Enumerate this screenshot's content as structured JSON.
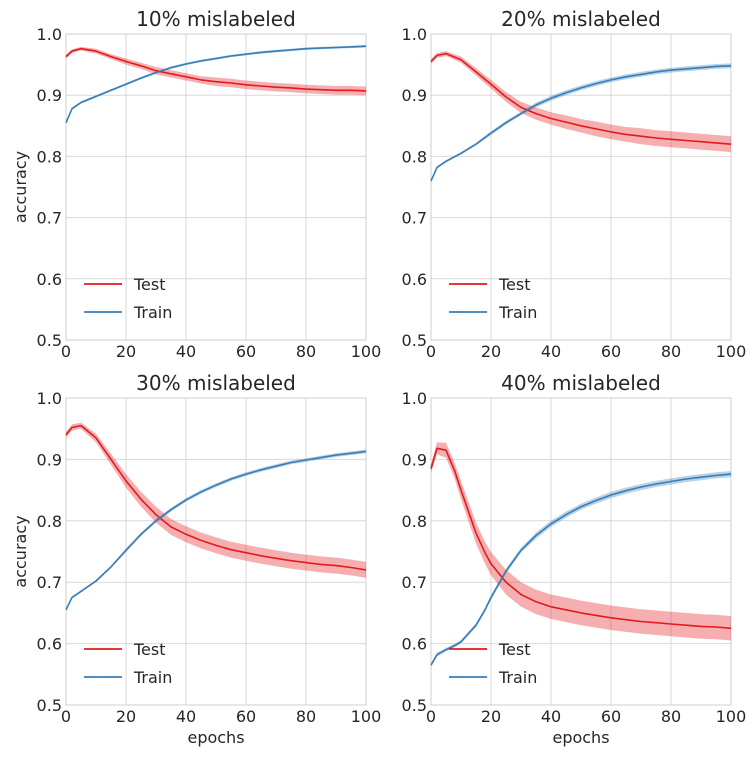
{
  "chart_data": [
    {
      "type": "line",
      "title": "10% mislabeled",
      "xlabel": "",
      "ylabel": "accuracy",
      "xlim": [
        0,
        100
      ],
      "ylim": [
        0.5,
        1.0
      ],
      "xticks": [
        "0",
        "20",
        "40",
        "60",
        "80",
        "100"
      ],
      "yticks": [
        "0.5",
        "0.6",
        "0.7",
        "0.8",
        "0.9",
        "1.0"
      ],
      "grid": true,
      "legend_position": "lower-left",
      "x": [
        0,
        2,
        5,
        10,
        15,
        20,
        25,
        30,
        35,
        40,
        45,
        50,
        55,
        60,
        65,
        70,
        75,
        80,
        85,
        90,
        95,
        100
      ],
      "series": [
        {
          "name": "Test",
          "color": "#e41a1c",
          "values": [
            0.963,
            0.972,
            0.976,
            0.972,
            0.963,
            0.955,
            0.948,
            0.94,
            0.935,
            0.93,
            0.925,
            0.922,
            0.92,
            0.917,
            0.915,
            0.913,
            0.912,
            0.91,
            0.909,
            0.908,
            0.908,
            0.907
          ],
          "band": [
            0.003,
            0.003,
            0.003,
            0.004,
            0.004,
            0.005,
            0.005,
            0.006,
            0.006,
            0.006,
            0.006,
            0.007,
            0.007,
            0.007,
            0.007,
            0.007,
            0.007,
            0.007,
            0.007,
            0.007,
            0.007,
            0.007
          ]
        },
        {
          "name": "Train",
          "color": "#377eb8",
          "values": [
            0.855,
            0.878,
            0.888,
            0.898,
            0.908,
            0.918,
            0.928,
            0.937,
            0.945,
            0.951,
            0.956,
            0.96,
            0.964,
            0.967,
            0.97,
            0.972,
            0.974,
            0.976,
            0.977,
            0.978,
            0.979,
            0.98
          ],
          "band": [
            0.002,
            0.002,
            0.002,
            0.002,
            0.002,
            0.002,
            0.002,
            0.002,
            0.002,
            0.002,
            0.002,
            0.002,
            0.002,
            0.002,
            0.002,
            0.002,
            0.002,
            0.002,
            0.002,
            0.002,
            0.002,
            0.002
          ]
        }
      ]
    },
    {
      "type": "line",
      "title": "20% mislabeled",
      "xlabel": "",
      "ylabel": "",
      "xlim": [
        0,
        100
      ],
      "ylim": [
        0.5,
        1.0
      ],
      "xticks": [
        "0",
        "20",
        "40",
        "60",
        "80",
        "100"
      ],
      "yticks": [
        "0.5",
        "0.6",
        "0.7",
        "0.8",
        "0.9",
        "1.0"
      ],
      "grid": true,
      "legend_position": "lower-left",
      "x": [
        0,
        2,
        5,
        10,
        15,
        20,
        25,
        30,
        35,
        40,
        45,
        50,
        55,
        60,
        65,
        70,
        75,
        80,
        85,
        90,
        95,
        100
      ],
      "series": [
        {
          "name": "Test",
          "color": "#e41a1c",
          "values": [
            0.955,
            0.965,
            0.968,
            0.958,
            0.938,
            0.918,
            0.897,
            0.88,
            0.87,
            0.862,
            0.856,
            0.85,
            0.845,
            0.84,
            0.836,
            0.833,
            0.83,
            0.828,
            0.826,
            0.824,
            0.822,
            0.82
          ],
          "band": [
            0.004,
            0.004,
            0.004,
            0.005,
            0.006,
            0.007,
            0.008,
            0.009,
            0.01,
            0.01,
            0.011,
            0.011,
            0.012,
            0.012,
            0.012,
            0.013,
            0.013,
            0.013,
            0.013,
            0.013,
            0.013,
            0.013
          ]
        },
        {
          "name": "Train",
          "color": "#377eb8",
          "values": [
            0.76,
            0.782,
            0.792,
            0.805,
            0.82,
            0.838,
            0.855,
            0.87,
            0.884,
            0.895,
            0.904,
            0.912,
            0.919,
            0.925,
            0.93,
            0.934,
            0.938,
            0.941,
            0.943,
            0.945,
            0.947,
            0.948
          ],
          "band": [
            0.002,
            0.002,
            0.002,
            0.002,
            0.002,
            0.003,
            0.003,
            0.003,
            0.004,
            0.004,
            0.004,
            0.004,
            0.004,
            0.004,
            0.004,
            0.004,
            0.004,
            0.004,
            0.004,
            0.004,
            0.004,
            0.004
          ]
        }
      ]
    },
    {
      "type": "line",
      "title": "30% mislabeled",
      "xlabel": "epochs",
      "ylabel": "accuracy",
      "xlim": [
        0,
        100
      ],
      "ylim": [
        0.5,
        1.0
      ],
      "xticks": [
        "0",
        "20",
        "40",
        "60",
        "80",
        "100"
      ],
      "yticks": [
        "0.5",
        "0.6",
        "0.7",
        "0.8",
        "0.9",
        "1.0"
      ],
      "grid": true,
      "legend_position": "lower-left",
      "x": [
        0,
        2,
        5,
        10,
        15,
        20,
        25,
        30,
        35,
        40,
        45,
        50,
        55,
        60,
        65,
        70,
        75,
        80,
        85,
        90,
        95,
        100
      ],
      "series": [
        {
          "name": "Test",
          "color": "#e41a1c",
          "values": [
            0.94,
            0.952,
            0.955,
            0.935,
            0.9,
            0.865,
            0.835,
            0.81,
            0.79,
            0.778,
            0.768,
            0.76,
            0.753,
            0.748,
            0.743,
            0.739,
            0.735,
            0.732,
            0.729,
            0.727,
            0.724,
            0.72
          ],
          "band": [
            0.005,
            0.005,
            0.005,
            0.007,
            0.009,
            0.011,
            0.012,
            0.013,
            0.013,
            0.013,
            0.013,
            0.013,
            0.013,
            0.013,
            0.013,
            0.013,
            0.013,
            0.013,
            0.013,
            0.013,
            0.013,
            0.013
          ]
        },
        {
          "name": "Train",
          "color": "#377eb8",
          "values": [
            0.655,
            0.675,
            0.685,
            0.702,
            0.725,
            0.752,
            0.778,
            0.8,
            0.818,
            0.834,
            0.847,
            0.858,
            0.868,
            0.876,
            0.883,
            0.889,
            0.895,
            0.899,
            0.903,
            0.907,
            0.91,
            0.913
          ],
          "band": [
            0.002,
            0.002,
            0.002,
            0.002,
            0.002,
            0.003,
            0.003,
            0.003,
            0.003,
            0.003,
            0.003,
            0.003,
            0.003,
            0.003,
            0.003,
            0.003,
            0.003,
            0.003,
            0.003,
            0.003,
            0.003,
            0.003
          ]
        }
      ]
    },
    {
      "type": "line",
      "title": "40% mislabeled",
      "xlabel": "epochs",
      "ylabel": "",
      "xlim": [
        0,
        100
      ],
      "ylim": [
        0.5,
        1.0
      ],
      "xticks": [
        "0",
        "20",
        "40",
        "60",
        "80",
        "100"
      ],
      "yticks": [
        "0.5",
        "0.6",
        "0.7",
        "0.8",
        "0.9",
        "1.0"
      ],
      "grid": true,
      "legend_position": "lower-left",
      "x": [
        0,
        2,
        5,
        8,
        10,
        15,
        18,
        20,
        25,
        30,
        35,
        40,
        45,
        50,
        55,
        60,
        65,
        70,
        75,
        80,
        85,
        90,
        95,
        100
      ],
      "series": [
        {
          "name": "Test",
          "color": "#e41a1c",
          "values": [
            0.885,
            0.918,
            0.915,
            0.88,
            0.85,
            0.78,
            0.748,
            0.73,
            0.7,
            0.68,
            0.668,
            0.66,
            0.655,
            0.65,
            0.646,
            0.642,
            0.639,
            0.636,
            0.634,
            0.632,
            0.63,
            0.628,
            0.627,
            0.625
          ],
          "band": [
            0.007,
            0.01,
            0.012,
            0.013,
            0.015,
            0.017,
            0.018,
            0.019,
            0.02,
            0.02,
            0.02,
            0.02,
            0.02,
            0.02,
            0.02,
            0.02,
            0.02,
            0.02,
            0.02,
            0.02,
            0.02,
            0.02,
            0.02,
            0.02
          ]
        },
        {
          "name": "Train",
          "color": "#377eb8",
          "values": [
            0.565,
            0.582,
            0.59,
            0.597,
            0.603,
            0.63,
            0.655,
            0.675,
            0.718,
            0.752,
            0.776,
            0.795,
            0.81,
            0.823,
            0.833,
            0.842,
            0.849,
            0.855,
            0.86,
            0.864,
            0.868,
            0.871,
            0.874,
            0.876
          ],
          "band": [
            0.003,
            0.003,
            0.003,
            0.003,
            0.003,
            0.003,
            0.003,
            0.004,
            0.004,
            0.004,
            0.005,
            0.005,
            0.005,
            0.005,
            0.005,
            0.005,
            0.005,
            0.005,
            0.005,
            0.005,
            0.005,
            0.005,
            0.005,
            0.005
          ]
        }
      ]
    }
  ]
}
